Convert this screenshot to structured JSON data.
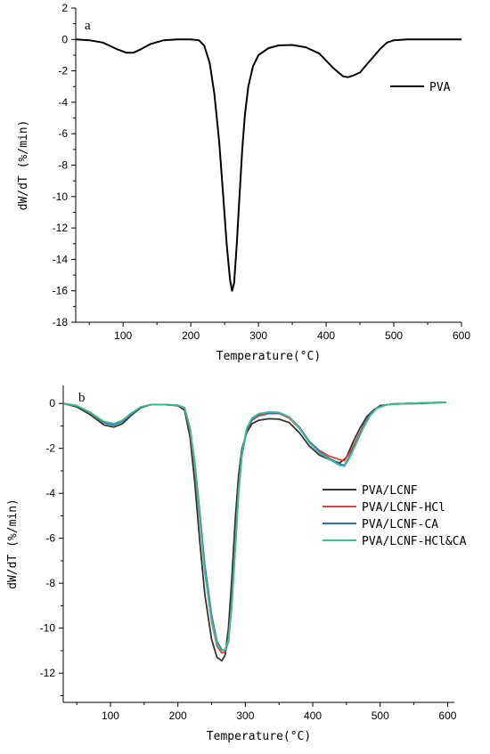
{
  "chart_data": [
    {
      "type": "line",
      "panel_label": "a",
      "xlabel": "Temperature(°C)",
      "ylabel": "dW/dT (%/min)",
      "xlim": [
        30,
        600
      ],
      "ylim": [
        -18,
        2
      ],
      "xticks": [
        100,
        200,
        300,
        400,
        500,
        600
      ],
      "yticks": [
        2,
        0,
        -2,
        -4,
        -6,
        -8,
        -10,
        -12,
        -14,
        -16,
        -18
      ],
      "legend_position": "top-right",
      "series": [
        {
          "name": "PVA",
          "color": "#000000",
          "points": [
            [
              30,
              0
            ],
            [
              50,
              -0.05
            ],
            [
              70,
              -0.2
            ],
            [
              90,
              -0.6
            ],
            [
              105,
              -0.85
            ],
            [
              115,
              -0.85
            ],
            [
              125,
              -0.65
            ],
            [
              140,
              -0.3
            ],
            [
              160,
              -0.05
            ],
            [
              180,
              0
            ],
            [
              200,
              0
            ],
            [
              212,
              -0.05
            ],
            [
              220,
              -0.4
            ],
            [
              228,
              -1.5
            ],
            [
              235,
              -3.5
            ],
            [
              242,
              -6.5
            ],
            [
              248,
              -10
            ],
            [
              253,
              -13
            ],
            [
              258,
              -15.3
            ],
            [
              261,
              -16
            ],
            [
              264,
              -15.5
            ],
            [
              268,
              -13
            ],
            [
              272,
              -10
            ],
            [
              276,
              -7
            ],
            [
              280,
              -4.8
            ],
            [
              285,
              -3
            ],
            [
              292,
              -1.7
            ],
            [
              300,
              -1
            ],
            [
              315,
              -0.55
            ],
            [
              330,
              -0.38
            ],
            [
              350,
              -0.35
            ],
            [
              370,
              -0.5
            ],
            [
              390,
              -0.9
            ],
            [
              410,
              -1.8
            ],
            [
              425,
              -2.35
            ],
            [
              432,
              -2.4
            ],
            [
              440,
              -2.3
            ],
            [
              450,
              -2.1
            ],
            [
              460,
              -1.6
            ],
            [
              470,
              -1.1
            ],
            [
              480,
              -0.6
            ],
            [
              490,
              -0.2
            ],
            [
              500,
              -0.05
            ],
            [
              520,
              0
            ],
            [
              560,
              0
            ],
            [
              600,
              0
            ]
          ]
        }
      ]
    },
    {
      "type": "line",
      "panel_label": "b",
      "xlabel": "Temperature(°C)",
      "ylabel": "dW/dT (%/min)",
      "xlim": [
        30,
        610
      ],
      "ylim": [
        -13.3,
        0.8
      ],
      "xticks": [
        100,
        200,
        300,
        400,
        500,
        600
      ],
      "yticks": [
        0,
        -2,
        -4,
        -6,
        -8,
        -10,
        -12
      ],
      "legend_position": "right",
      "series": [
        {
          "name": "PVA/LCNF",
          "color": "#333333",
          "points": [
            [
              30,
              0
            ],
            [
              50,
              -0.15
            ],
            [
              70,
              -0.5
            ],
            [
              90,
              -0.95
            ],
            [
              105,
              -1.05
            ],
            [
              118,
              -0.9
            ],
            [
              130,
              -0.55
            ],
            [
              145,
              -0.2
            ],
            [
              160,
              -0.05
            ],
            [
              180,
              -0.05
            ],
            [
              200,
              -0.1
            ],
            [
              210,
              -0.3
            ],
            [
              218,
              -1.5
            ],
            [
              225,
              -3.5
            ],
            [
              232,
              -6
            ],
            [
              240,
              -8.5
            ],
            [
              250,
              -10.5
            ],
            [
              258,
              -11.3
            ],
            [
              265,
              -11.45
            ],
            [
              270,
              -11.2
            ],
            [
              275,
              -10
            ],
            [
              280,
              -7.8
            ],
            [
              285,
              -5.2
            ],
            [
              290,
              -3.2
            ],
            [
              295,
              -2
            ],
            [
              302,
              -1.3
            ],
            [
              310,
              -0.9
            ],
            [
              320,
              -0.75
            ],
            [
              335,
              -0.68
            ],
            [
              350,
              -0.7
            ],
            [
              365,
              -0.85
            ],
            [
              380,
              -1.3
            ],
            [
              395,
              -1.9
            ],
            [
              410,
              -2.3
            ],
            [
              425,
              -2.5
            ],
            [
              440,
              -2.65
            ],
            [
              450,
              -2.4
            ],
            [
              460,
              -1.7
            ],
            [
              470,
              -1.1
            ],
            [
              480,
              -0.6
            ],
            [
              490,
              -0.3
            ],
            [
              500,
              -0.1
            ],
            [
              520,
              -0.02
            ],
            [
              560,
              0
            ],
            [
              598,
              0.05
            ]
          ]
        },
        {
          "name": "PVA/LCNF-HCl",
          "color": "#e8403c",
          "points": [
            [
              30,
              0
            ],
            [
              50,
              -0.1
            ],
            [
              70,
              -0.4
            ],
            [
              90,
              -0.85
            ],
            [
              105,
              -0.95
            ],
            [
              118,
              -0.8
            ],
            [
              130,
              -0.5
            ],
            [
              145,
              -0.18
            ],
            [
              160,
              -0.05
            ],
            [
              180,
              -0.05
            ],
            [
              200,
              -0.08
            ],
            [
              210,
              -0.2
            ],
            [
              218,
              -1.2
            ],
            [
              225,
              -2.8
            ],
            [
              232,
              -5
            ],
            [
              240,
              -7.5
            ],
            [
              250,
              -9.7
            ],
            [
              258,
              -10.8
            ],
            [
              265,
              -11.1
            ],
            [
              270,
              -11.05
            ],
            [
              275,
              -10.5
            ],
            [
              280,
              -8.8
            ],
            [
              285,
              -6.3
            ],
            [
              290,
              -3.8
            ],
            [
              295,
              -2.2
            ],
            [
              302,
              -1.2
            ],
            [
              310,
              -0.75
            ],
            [
              320,
              -0.55
            ],
            [
              335,
              -0.45
            ],
            [
              350,
              -0.45
            ],
            [
              365,
              -0.65
            ],
            [
              380,
              -1.1
            ],
            [
              395,
              -1.7
            ],
            [
              410,
              -2.1
            ],
            [
              425,
              -2.35
            ],
            [
              440,
              -2.5
            ],
            [
              447,
              -2.55
            ],
            [
              455,
              -2.2
            ],
            [
              465,
              -1.6
            ],
            [
              475,
              -1
            ],
            [
              485,
              -0.5
            ],
            [
              495,
              -0.2
            ],
            [
              510,
              -0.05
            ],
            [
              540,
              0
            ],
            [
              598,
              0.05
            ]
          ]
        },
        {
          "name": "PVA/LCNF-CA",
          "color": "#2e6fc0",
          "points": [
            [
              30,
              0
            ],
            [
              50,
              -0.1
            ],
            [
              70,
              -0.4
            ],
            [
              90,
              -0.85
            ],
            [
              105,
              -0.95
            ],
            [
              118,
              -0.8
            ],
            [
              130,
              -0.5
            ],
            [
              145,
              -0.18
            ],
            [
              160,
              -0.05
            ],
            [
              180,
              -0.05
            ],
            [
              200,
              -0.08
            ],
            [
              210,
              -0.2
            ],
            [
              218,
              -1.1
            ],
            [
              225,
              -2.6
            ],
            [
              232,
              -4.7
            ],
            [
              240,
              -7.2
            ],
            [
              250,
              -9.4
            ],
            [
              258,
              -10.6
            ],
            [
              265,
              -10.95
            ],
            [
              270,
              -11
            ],
            [
              275,
              -10.6
            ],
            [
              280,
              -9
            ],
            [
              285,
              -6.5
            ],
            [
              290,
              -4
            ],
            [
              295,
              -2.3
            ],
            [
              302,
              -1.2
            ],
            [
              310,
              -0.7
            ],
            [
              320,
              -0.5
            ],
            [
              335,
              -0.42
            ],
            [
              350,
              -0.42
            ],
            [
              365,
              -0.6
            ],
            [
              380,
              -1.05
            ],
            [
              395,
              -1.7
            ],
            [
              410,
              -2.15
            ],
            [
              425,
              -2.45
            ],
            [
              440,
              -2.7
            ],
            [
              447,
              -2.75
            ],
            [
              455,
              -2.35
            ],
            [
              465,
              -1.7
            ],
            [
              475,
              -1.05
            ],
            [
              485,
              -0.5
            ],
            [
              495,
              -0.2
            ],
            [
              510,
              -0.05
            ],
            [
              540,
              0
            ],
            [
              598,
              0.05
            ]
          ]
        },
        {
          "name": "PVA/LCNF-HCl&CA",
          "color": "#3cbf8a",
          "points": [
            [
              30,
              0
            ],
            [
              50,
              -0.1
            ],
            [
              70,
              -0.4
            ],
            [
              90,
              -0.8
            ],
            [
              105,
              -0.9
            ],
            [
              118,
              -0.75
            ],
            [
              130,
              -0.45
            ],
            [
              145,
              -0.15
            ],
            [
              160,
              -0.05
            ],
            [
              180,
              -0.05
            ],
            [
              200,
              -0.08
            ],
            [
              210,
              -0.2
            ],
            [
              218,
              -1.1
            ],
            [
              225,
              -2.7
            ],
            [
              232,
              -4.9
            ],
            [
              240,
              -7.5
            ],
            [
              250,
              -9.6
            ],
            [
              258,
              -10.7
            ],
            [
              265,
              -11
            ],
            [
              270,
              -10.95
            ],
            [
              275,
              -10.5
            ],
            [
              280,
              -8.9
            ],
            [
              285,
              -6.4
            ],
            [
              290,
              -3.9
            ],
            [
              295,
              -2.2
            ],
            [
              302,
              -1.1
            ],
            [
              310,
              -0.65
            ],
            [
              320,
              -0.45
            ],
            [
              335,
              -0.38
            ],
            [
              350,
              -0.4
            ],
            [
              365,
              -0.6
            ],
            [
              380,
              -1.1
            ],
            [
              395,
              -1.75
            ],
            [
              410,
              -2.2
            ],
            [
              425,
              -2.5
            ],
            [
              440,
              -2.75
            ],
            [
              447,
              -2.8
            ],
            [
              455,
              -2.4
            ],
            [
              465,
              -1.75
            ],
            [
              475,
              -1.1
            ],
            [
              485,
              -0.55
            ],
            [
              495,
              -0.22
            ],
            [
              510,
              -0.05
            ],
            [
              540,
              0
            ],
            [
              598,
              0.05
            ]
          ]
        }
      ]
    }
  ]
}
